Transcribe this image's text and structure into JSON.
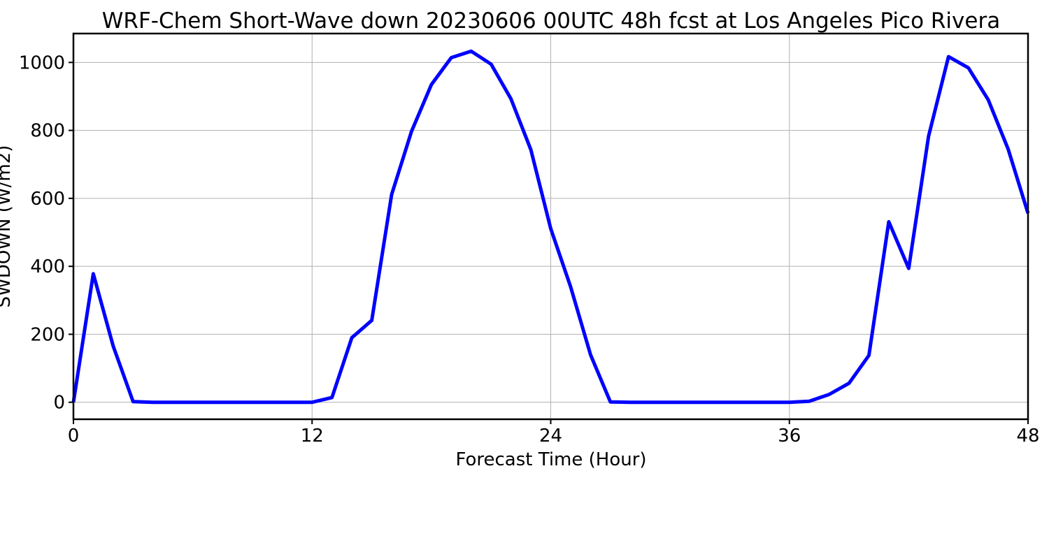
{
  "chart_data": {
    "type": "line",
    "title": "WRF-Chem Short-Wave down  20230606 00UTC 48h fcst at Los Angeles Pico Rivera",
    "xlabel": "Forecast Time (Hour)",
    "ylabel": "SWDOWN  (W/m2)",
    "xlim": [
      0,
      48
    ],
    "ylim": [
      -50,
      1085
    ],
    "xticks": [
      0,
      12,
      24,
      36,
      48
    ],
    "yticks": [
      0,
      200,
      400,
      600,
      800,
      1000
    ],
    "grid": true,
    "series": [
      {
        "color": "#0000ff",
        "x": [
          0,
          1,
          2,
          3,
          4,
          5,
          6,
          7,
          8,
          9,
          10,
          11,
          12,
          13,
          14,
          15,
          16,
          17,
          18,
          19,
          20,
          21,
          22,
          23,
          24,
          25,
          26,
          27,
          28,
          29,
          30,
          31,
          32,
          33,
          34,
          35,
          36,
          37,
          38,
          39,
          40,
          41,
          42,
          43,
          44,
          45,
          46,
          47,
          48
        ],
        "values": [
          0,
          378,
          165,
          2,
          0,
          0,
          0,
          0,
          0,
          0,
          0,
          0,
          0,
          14,
          190,
          241,
          611,
          797,
          935,
          1014,
          1033,
          995,
          893,
          743,
          511,
          340,
          140,
          1,
          0,
          0,
          0,
          0,
          0,
          0,
          0,
          0,
          0,
          3,
          23,
          56,
          138,
          531,
          394,
          783,
          1017,
          984,
          890,
          745,
          556
        ]
      }
    ]
  }
}
